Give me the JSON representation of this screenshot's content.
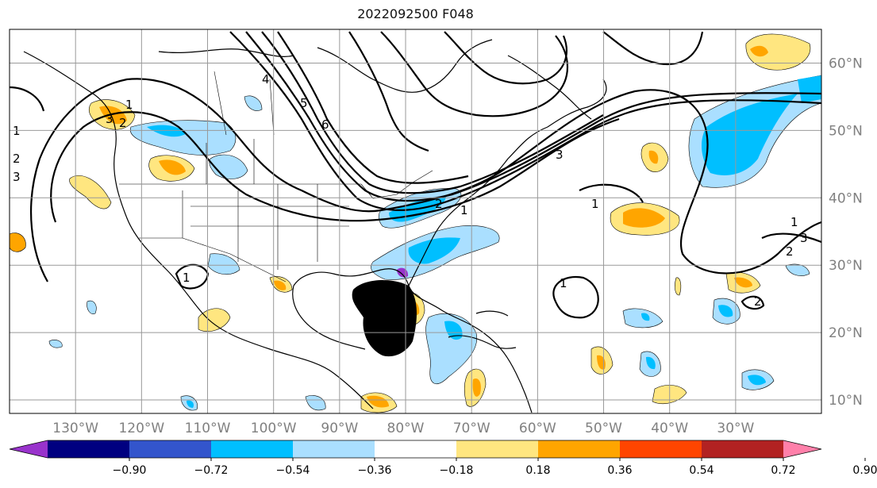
{
  "title": "2022092500 F048",
  "map": {
    "lon_range": [
      -140,
      -17
    ],
    "lat_range": [
      8,
      65
    ],
    "meridians": [
      -130,
      -120,
      -110,
      -100,
      -90,
      -80,
      -70,
      -60,
      -50,
      -40,
      -30
    ],
    "parallels": [
      10,
      20,
      30,
      40,
      50,
      60
    ],
    "lon_labels": [
      "130°W",
      "120°W",
      "110°W",
      "100°W",
      "90°W",
      "80°W",
      "70°W",
      "60°W",
      "50°W",
      "40°W",
      "30°W"
    ],
    "lat_labels": [
      "10°N",
      "20°N",
      "30°N",
      "40°N",
      "50°N",
      "60°N"
    ],
    "grid": true,
    "tick_label_color": "#808080"
  },
  "contour_labels": [
    "1",
    "2",
    "3",
    "4",
    "5",
    "6",
    "1",
    "2",
    "3",
    "1",
    "2",
    "3",
    "1",
    "1",
    "1",
    "2",
    "3",
    "1",
    "2"
  ],
  "colorbar": {
    "levels": [
      "−0.90",
      "−0.72",
      "−0.54",
      "−0.36",
      "−0.18",
      "0.18",
      "0.36",
      "0.54",
      "0.72",
      "0.90"
    ],
    "colors": [
      "#9933cc",
      "#000080",
      "#3355cc",
      "#00bfff",
      "#aadfff",
      "#ffffff",
      "#ffe680",
      "#ffa500",
      "#ff4500",
      "#b22222",
      "#ff80aa"
    ],
    "extend": "both"
  }
}
